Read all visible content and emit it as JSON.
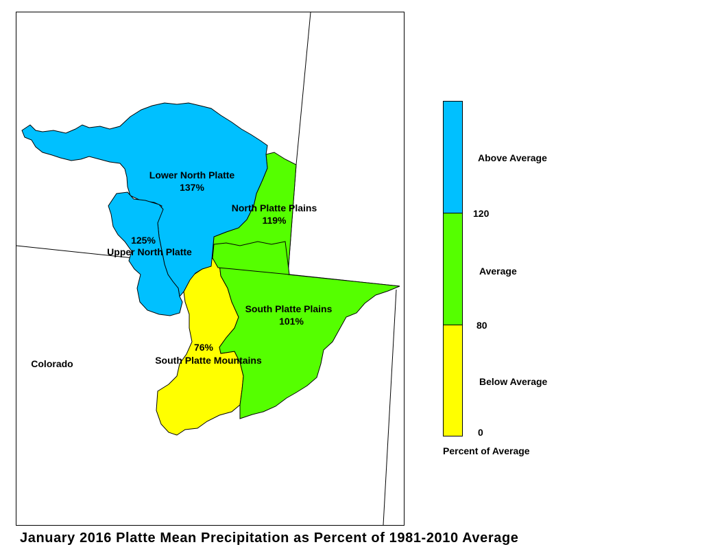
{
  "title": "January 2016 Platte Mean Precipitation as Percent of 1981-2010 Average",
  "state_label": "Colorado",
  "colors": {
    "above": "#00c0ff",
    "average": "#55ff00",
    "below": "#ffff00",
    "border": "#000000"
  },
  "basins": [
    {
      "id": "lower-north-platte",
      "name": "Lower North Platte",
      "value": "137%",
      "category": "above"
    },
    {
      "id": "upper-north-platte",
      "name": "Upper North Platte",
      "value": "125%",
      "category": "above"
    },
    {
      "id": "north-platte-plains",
      "name": "North Platte Plains",
      "value": "119%",
      "category": "average"
    },
    {
      "id": "south-platte-plains",
      "name": "South Platte Plains",
      "value": "101%",
      "category": "average"
    },
    {
      "id": "south-platte-mountains",
      "name": "South Platte Mountains",
      "value": "76%",
      "category": "below"
    }
  ],
  "legend": {
    "title": "Percent of Average",
    "categories": [
      {
        "label": "Above Average",
        "category": "above"
      },
      {
        "label": "Average",
        "category": "average"
      },
      {
        "label": "Below Average",
        "category": "below"
      }
    ],
    "breaks": [
      "120",
      "80",
      "0"
    ]
  }
}
